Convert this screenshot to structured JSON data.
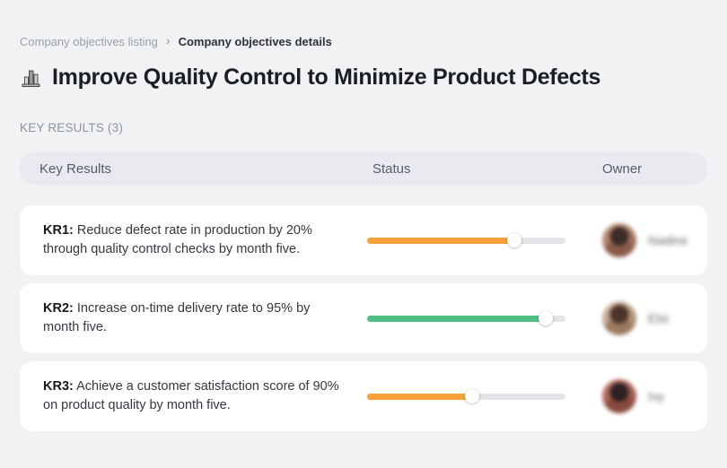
{
  "breadcrumb": {
    "separator": "›",
    "items": [
      {
        "label": "Company objectives listing"
      },
      {
        "label": "Company objectives details"
      }
    ]
  },
  "header": {
    "icon": "city-buildings-icon",
    "title": "Improve Quality Control to Minimize Product Defects"
  },
  "section": {
    "label": "KEY RESULTS (3)"
  },
  "table": {
    "columns": [
      "Key Results",
      "Status",
      "Owner"
    ],
    "track_color": "#e3e4e7",
    "rows": [
      {
        "kr_label": "KR1:",
        "text": "Reduce defect rate in production by 20% through quality control checks by month five.",
        "progress_percent": 74,
        "progress_color": "#F8A13B",
        "owner": {
          "name": "Nadine",
          "avatar_colors": [
            "#c79b82",
            "#8a5a48",
            "#3c2b26"
          ]
        }
      },
      {
        "kr_label": "KR2:",
        "text": "Increase on-time delivery rate to 95% by month five.",
        "progress_percent": 90,
        "progress_color": "#4FBF83",
        "owner": {
          "name": "Elsi",
          "avatar_colors": [
            "#d9c2ad",
            "#9c7a5f",
            "#4b3529"
          ]
        }
      },
      {
        "kr_label": "KR3:",
        "text": "Achieve a customer satisfaction score of 90% on product quality by month five.",
        "progress_percent": 53,
        "progress_color": "#F8A13B",
        "owner": {
          "name": "Ivy",
          "avatar_colors": [
            "#c2766a",
            "#8a4a3d",
            "#2e2022"
          ]
        }
      }
    ]
  }
}
